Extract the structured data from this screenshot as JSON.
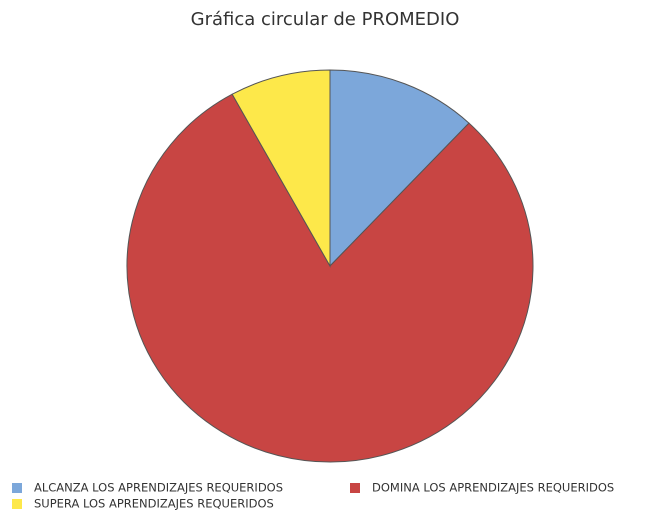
{
  "chart_data": {
    "type": "pie",
    "title": "Gráfica circular de PROMEDIO",
    "categories": [
      "ALCANZA LOS APRENDIZAJES REQUERIDOS",
      "DOMINA LOS APRENDIZAJES REQUERIDOS",
      "SUPERA LOS APRENDIZAJES REQUERIDOS"
    ],
    "values": [
      12,
      80,
      8
    ],
    "colors": [
      "#7ca7da",
      "#c84543",
      "#fde84a"
    ],
    "legend": "bottom"
  }
}
